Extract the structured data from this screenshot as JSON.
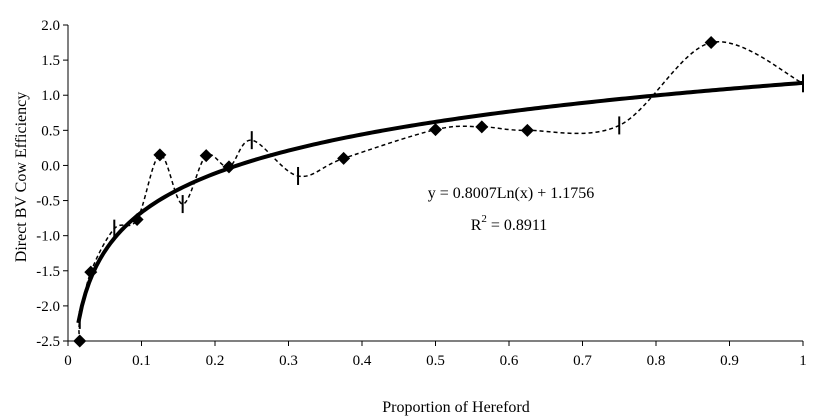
{
  "chart_data": {
    "type": "scatter",
    "xlabel": "Proportion of Hereford",
    "ylabel": "Direct BV Cow Efficiency",
    "xlim": [
      0,
      1
    ],
    "ylim": [
      -2.5,
      2.0
    ],
    "x_ticks": [
      0,
      0.1,
      0.2,
      0.3,
      0.4,
      0.5,
      0.6,
      0.7,
      0.8,
      0.9,
      1
    ],
    "x_tick_labels": [
      "0",
      "0.1",
      "0.2",
      "0.3",
      "0.4",
      "0.5",
      "0.6",
      "0.7",
      "0.8",
      "0.9",
      "1"
    ],
    "y_ticks": [
      -2.5,
      -2.0,
      -1.5,
      -1.0,
      -0.5,
      0.0,
      0.5,
      1.0,
      1.5,
      2.0
    ],
    "y_tick_labels": [
      "-2.5",
      "-2.0",
      "-1.5",
      "-1.0",
      "-0.5",
      "0.0",
      "0.5",
      "1.0",
      "1.5",
      "2.0"
    ],
    "grid": false,
    "legend": "none",
    "series": [
      {
        "marker": "diamond",
        "line": "dotted-smooth",
        "color": "#000000",
        "x": [
          0.016,
          0.031,
          0.094,
          0.125,
          0.188,
          0.219,
          0.375,
          0.5,
          0.563,
          0.625,
          0.875
        ],
        "y": [
          -2.5,
          -1.52,
          -0.77,
          0.15,
          0.14,
          -0.02,
          0.1,
          0.51,
          0.55,
          0.5,
          1.75
        ]
      },
      {
        "marker": "dash",
        "color": "#000000",
        "x": [
          0.016,
          0.063,
          0.156,
          0.25,
          0.313,
          0.75,
          1.0
        ],
        "y": [
          -2.2,
          -0.9,
          -0.55,
          0.36,
          -0.15,
          0.57,
          1.17
        ]
      }
    ],
    "trendline": {
      "type": "logarithmic",
      "slope": 0.8007,
      "intercept": 1.1756,
      "equation": "y = 0.8007Ln(x) + 1.1756",
      "r2_prefix": "R",
      "r2_sup": "2",
      "r2_value": " = 0.8911",
      "color": "#000000"
    }
  }
}
